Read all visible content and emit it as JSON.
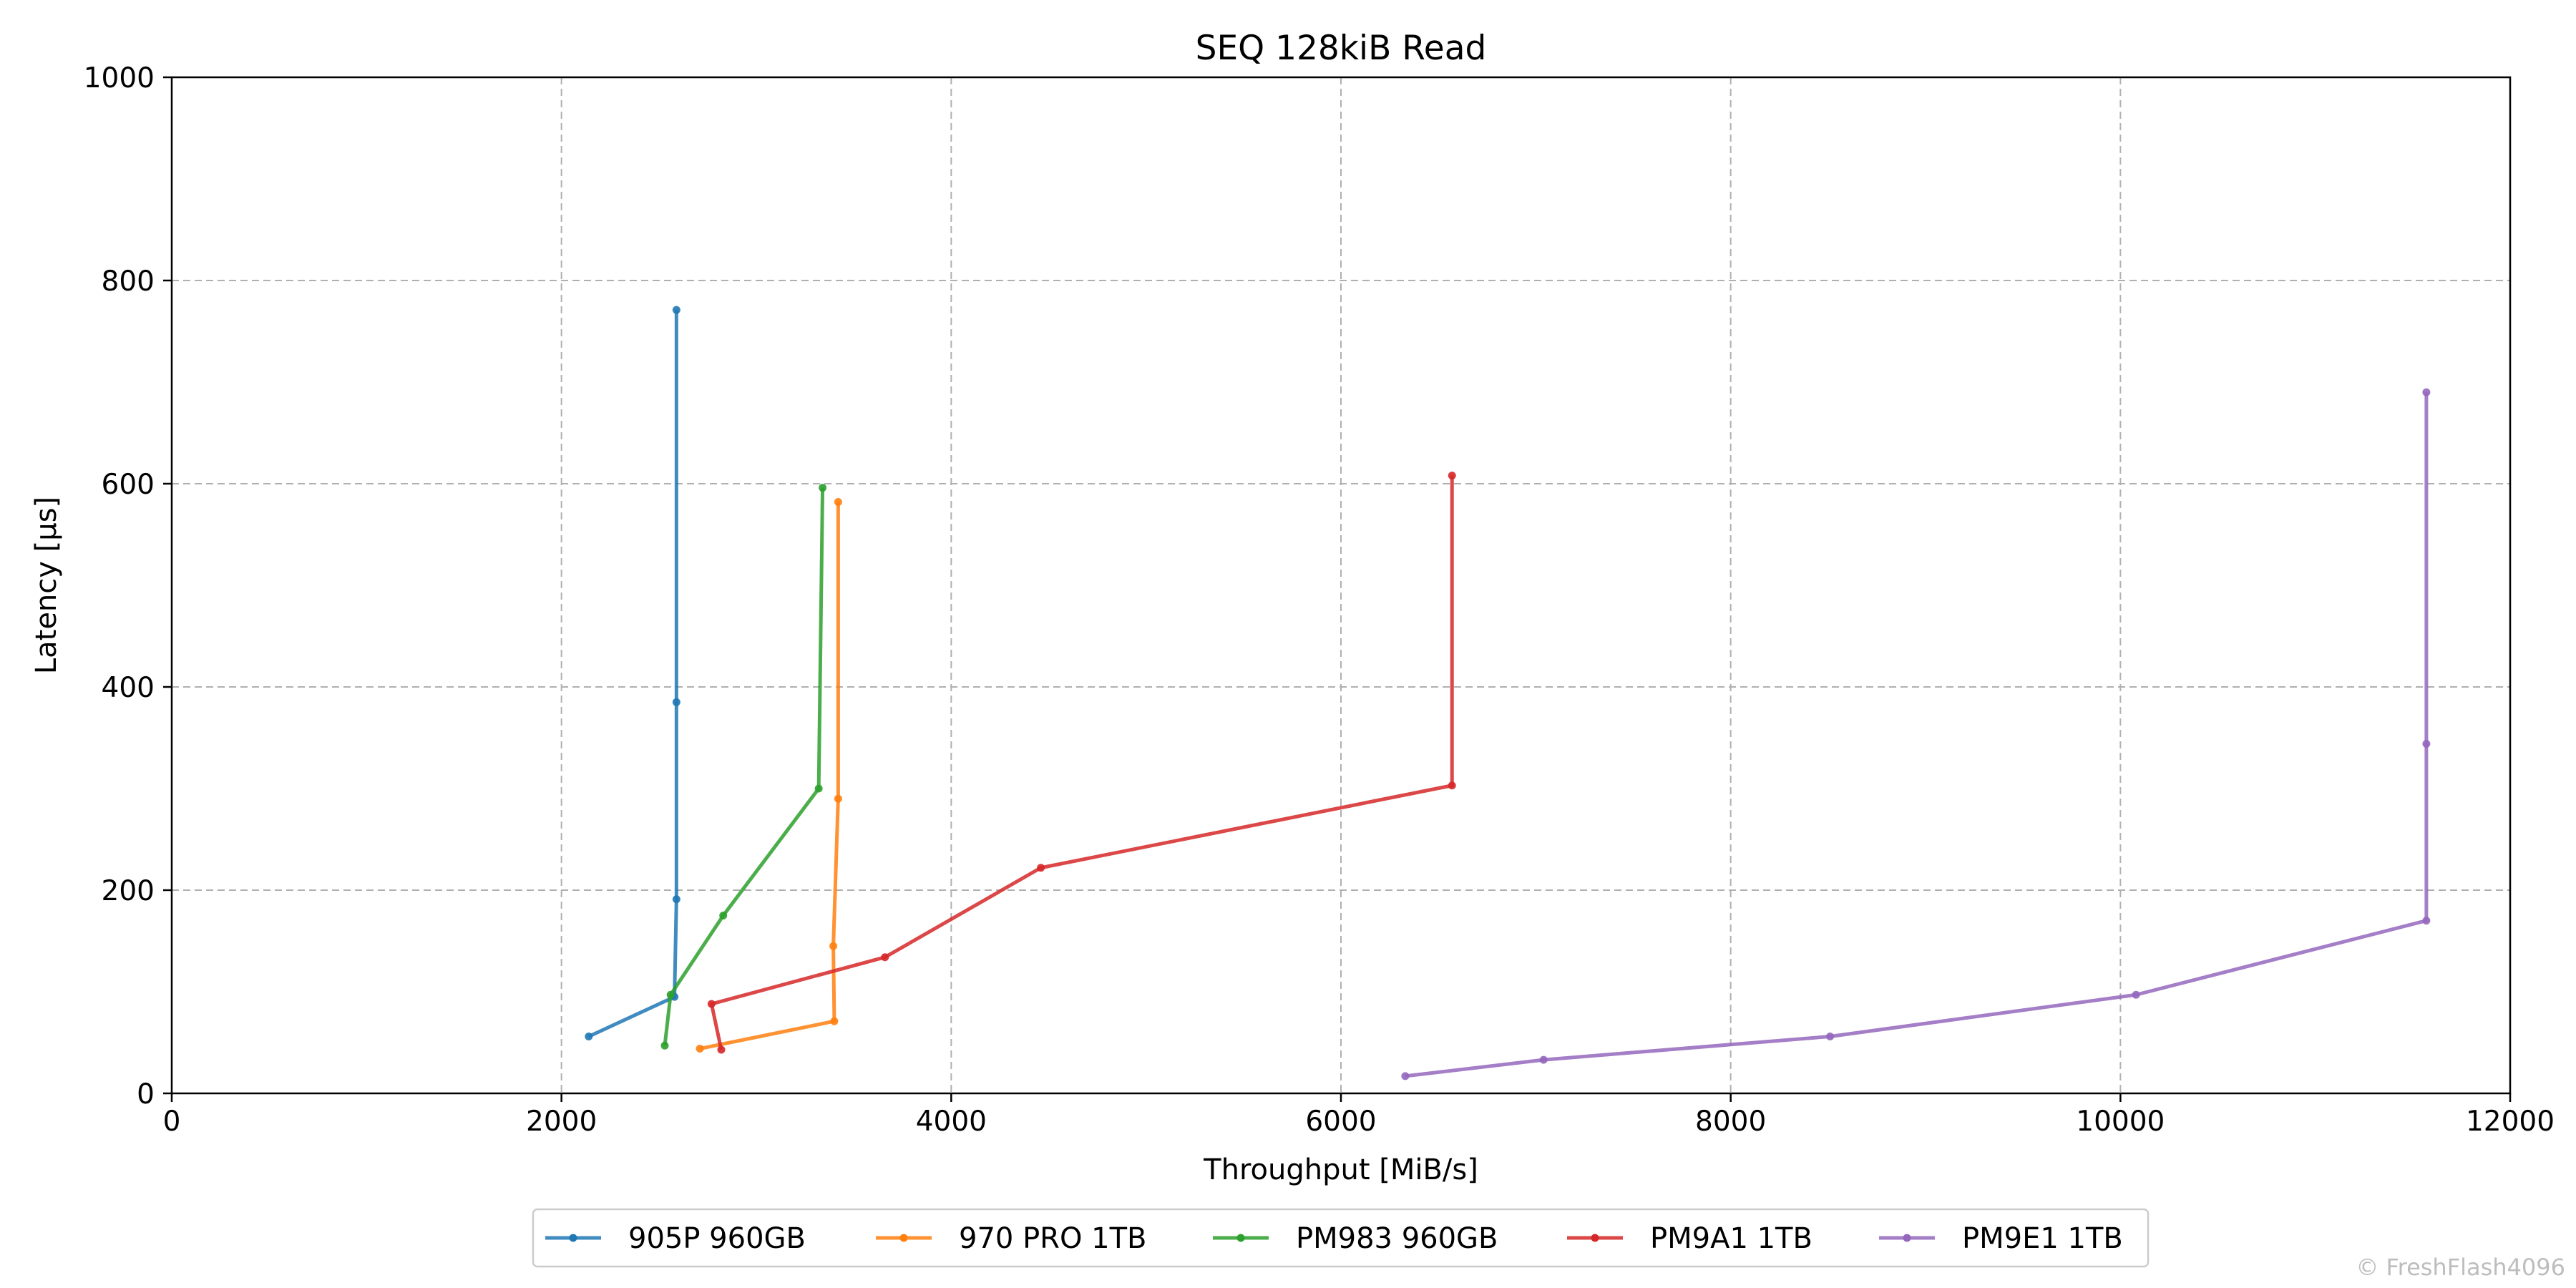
{
  "chart_data": {
    "type": "line",
    "title": "SEQ 128kiB Read",
    "xlabel": "Throughput [MiB/s]",
    "ylabel": "Latency [µs]",
    "xlim": [
      0,
      12000
    ],
    "ylim": [
      0,
      1000
    ],
    "xticks": [
      0,
      2000,
      4000,
      6000,
      8000,
      10000,
      12000
    ],
    "yticks": [
      0,
      200,
      400,
      600,
      800,
      1000
    ],
    "grid": true,
    "legend_position": "bottom-center",
    "series": [
      {
        "name": "905P 960GB",
        "color": "#1f77b4",
        "points": [
          [
            2140,
            56
          ],
          [
            2580,
            95
          ],
          [
            2590,
            191
          ],
          [
            2590,
            385
          ],
          [
            2590,
            771
          ]
        ]
      },
      {
        "name": "970 PRO 1TB",
        "color": "#ff7f0e",
        "points": [
          [
            2710,
            44
          ],
          [
            3400,
            71
          ],
          [
            3395,
            145
          ],
          [
            3420,
            290
          ],
          [
            3420,
            582
          ]
        ]
      },
      {
        "name": "PM983 960GB",
        "color": "#2ca02c",
        "points": [
          [
            2530,
            47
          ],
          [
            2560,
            97
          ],
          [
            2830,
            175
          ],
          [
            3320,
            300
          ],
          [
            3340,
            596
          ]
        ]
      },
      {
        "name": "PM9A1 1TB",
        "color": "#d62728",
        "points": [
          [
            2820,
            43
          ],
          [
            2770,
            88
          ],
          [
            3660,
            134
          ],
          [
            4460,
            222
          ],
          [
            6570,
            303
          ],
          [
            6570,
            608
          ]
        ]
      },
      {
        "name": "PM9E1 1TB",
        "color": "#9467bd",
        "points": [
          [
            6330,
            17
          ],
          [
            7040,
            33
          ],
          [
            8510,
            56
          ],
          [
            10080,
            97
          ],
          [
            11570,
            170
          ],
          [
            11570,
            344
          ],
          [
            11570,
            690
          ]
        ]
      }
    ]
  },
  "watermark": "© FreshFlash4096"
}
